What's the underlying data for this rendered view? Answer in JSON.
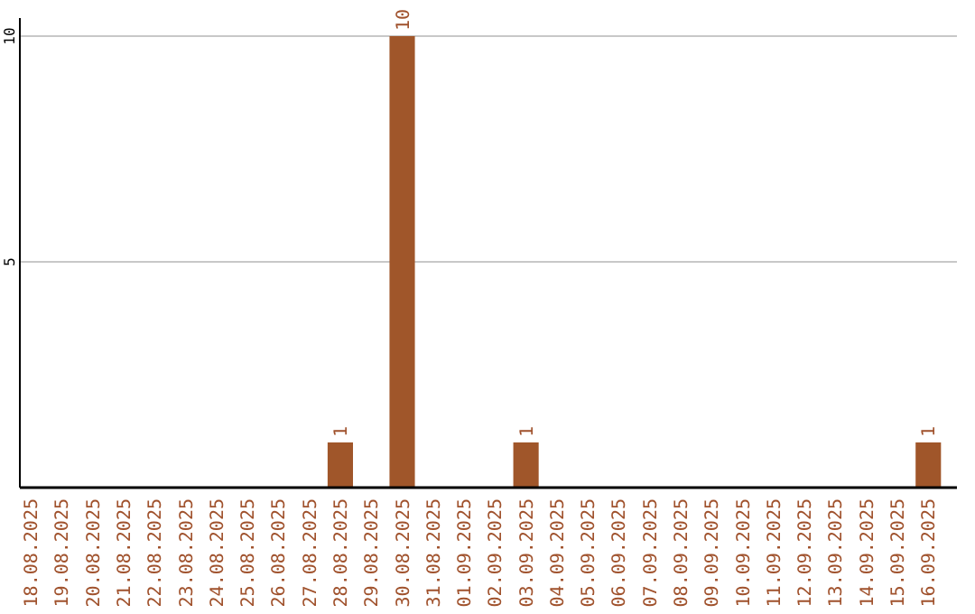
{
  "chart_data": {
    "type": "bar",
    "categories": [
      "18.08.2025",
      "19.08.2025",
      "20.08.2025",
      "21.08.2025",
      "22.08.2025",
      "23.08.2025",
      "24.08.2025",
      "25.08.2025",
      "26.08.2025",
      "27.08.2025",
      "28.08.2025",
      "29.08.2025",
      "30.08.2025",
      "31.08.2025",
      "01.09.2025",
      "02.09.2025",
      "03.09.2025",
      "04.09.2025",
      "05.09.2025",
      "06.09.2025",
      "07.09.2025",
      "08.09.2025",
      "09.09.2025",
      "10.09.2025",
      "11.09.2025",
      "12.09.2025",
      "13.09.2025",
      "14.09.2025",
      "15.09.2025",
      "16.09.2025"
    ],
    "values": [
      0,
      0,
      0,
      0,
      0,
      0,
      0,
      0,
      0,
      0,
      1,
      0,
      10,
      0,
      0,
      0,
      1,
      0,
      0,
      0,
      0,
      0,
      0,
      0,
      0,
      0,
      0,
      0,
      0,
      1
    ],
    "value_labels": [
      null,
      null,
      null,
      null,
      null,
      null,
      null,
      null,
      null,
      null,
      "1",
      null,
      "10",
      null,
      null,
      null,
      "1",
      null,
      null,
      null,
      null,
      null,
      null,
      null,
      null,
      null,
      null,
      null,
      null,
      "1"
    ],
    "color": "#a0562a",
    "ylim": [
      0,
      10.4
    ],
    "yticks": [
      5,
      10
    ],
    "grid": "y"
  }
}
